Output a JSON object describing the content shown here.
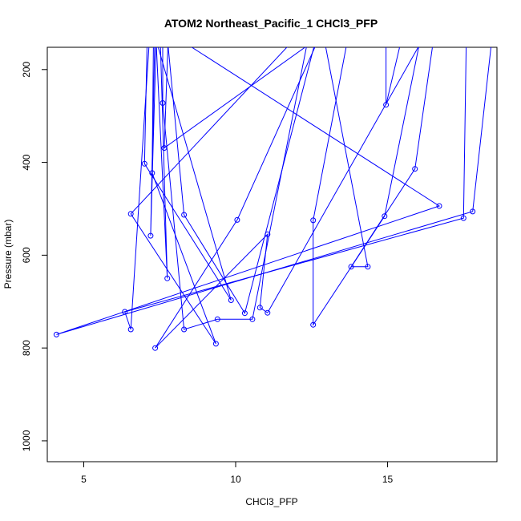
{
  "chart_data": {
    "type": "line",
    "title": "ATOM2 Northeast_Pacific_1 CHCl3_PFP",
    "xlabel": "CHCl3_PFP",
    "ylabel": "Pressure (mbar)",
    "xlim": [
      3.8,
      18.6
    ],
    "ylim": [
      1045,
      152
    ],
    "y_reversed": true,
    "xticks": [
      5,
      10,
      15
    ],
    "yticks": [
      200,
      400,
      600,
      800,
      1000
    ],
    "series_color": "#0000ff",
    "series": [
      {
        "points": [
          {
            "x": 7.1,
            "y": 95
          },
          {
            "x": 7.0,
            "y": 403
          },
          {
            "x": 9.85,
            "y": 697
          },
          {
            "x": 7.2,
            "y": 95
          }
        ]
      },
      {
        "points": [
          {
            "x": 7.6,
            "y": 95
          },
          {
            "x": 7.6,
            "y": 272
          },
          {
            "x": 8.3,
            "y": 760
          },
          {
            "x": 9.4,
            "y": 738
          },
          {
            "x": 10.55,
            "y": 738
          },
          {
            "x": 12.5,
            "y": 95
          }
        ]
      },
      {
        "points": [
          {
            "x": 7.8,
            "y": 95
          },
          {
            "x": 7.65,
            "y": 369
          },
          {
            "x": 13.5,
            "y": 95
          }
        ]
      },
      {
        "points": [
          {
            "x": 12.5,
            "y": 95
          },
          {
            "x": 6.55,
            "y": 511
          },
          {
            "x": 9.35,
            "y": 791
          },
          {
            "x": 7.25,
            "y": 423
          },
          {
            "x": 7.3,
            "y": 95
          }
        ]
      },
      {
        "points": [
          {
            "x": 13.0,
            "y": 95
          },
          {
            "x": 10.05,
            "y": 524
          },
          {
            "x": 7.35,
            "y": 800
          },
          {
            "x": 11.05,
            "y": 555
          },
          {
            "x": 10.8,
            "y": 713
          },
          {
            "x": 11.05,
            "y": 724
          },
          {
            "x": 16.5,
            "y": 95
          }
        ]
      },
      {
        "points": [
          {
            "x": 17.6,
            "y": 95
          },
          {
            "x": 17.5,
            "y": 520
          },
          {
            "x": 6.35,
            "y": 722
          },
          {
            "x": 6.55,
            "y": 760
          },
          {
            "x": 7.2,
            "y": 95
          }
        ]
      },
      {
        "points": [
          {
            "x": 18.5,
            "y": 95
          },
          {
            "x": 17.8,
            "y": 506
          },
          {
            "x": 4.1,
            "y": 771
          },
          {
            "x": 16.7,
            "y": 494
          },
          {
            "x": 7.2,
            "y": 95
          }
        ]
      },
      {
        "points": [
          {
            "x": 16.2,
            "y": 95
          },
          {
            "x": 14.9,
            "y": 516
          },
          {
            "x": 12.55,
            "y": 750
          },
          {
            "x": 12.55,
            "y": 525
          },
          {
            "x": 13.8,
            "y": 95
          }
        ]
      },
      {
        "points": [
          {
            "x": 15.6,
            "y": 95
          },
          {
            "x": 14.95,
            "y": 276
          },
          {
            "x": 14.95,
            "y": 95
          }
        ]
      },
      {
        "points": [
          {
            "x": 16.6,
            "y": 95
          },
          {
            "x": 15.9,
            "y": 414
          },
          {
            "x": 13.8,
            "y": 625
          },
          {
            "x": 14.35,
            "y": 625
          },
          {
            "x": 12.8,
            "y": 95
          }
        ]
      },
      {
        "points": [
          {
            "x": 7.5,
            "y": 95
          },
          {
            "x": 7.75,
            "y": 650
          },
          {
            "x": 7.35,
            "y": 95
          }
        ]
      },
      {
        "points": [
          {
            "x": 7.35,
            "y": 95
          },
          {
            "x": 7.2,
            "y": 558
          },
          {
            "x": 7.4,
            "y": 95
          }
        ]
      },
      {
        "points": [
          {
            "x": 7.7,
            "y": 95
          },
          {
            "x": 8.3,
            "y": 513
          },
          {
            "x": 10.3,
            "y": 725
          },
          {
            "x": 12.8,
            "y": 95
          }
        ]
      }
    ]
  }
}
